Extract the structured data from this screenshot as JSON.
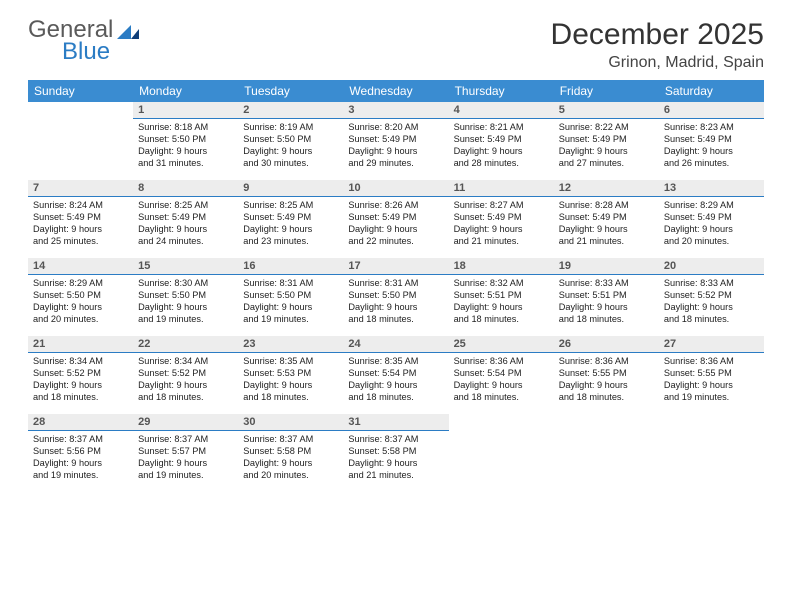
{
  "brand": {
    "part1": "General",
    "part2": "Blue"
  },
  "title": "December 2025",
  "subtitle": "Grinon, Madrid, Spain",
  "colors": {
    "header_bg": "#3a8cd1",
    "header_text": "#ffffff",
    "daynum_bg": "#ededed",
    "day_border": "#2b7cc4",
    "text": "#222222",
    "logo_gray": "#5a5a5a",
    "logo_blue": "#2b7cc4"
  },
  "fonts": {
    "title_pt": 30,
    "subtitle_pt": 16,
    "th_pt": 12,
    "dnum_pt": 11,
    "body_pt": 9.2
  },
  "weekdays": [
    "Sunday",
    "Monday",
    "Tuesday",
    "Wednesday",
    "Thursday",
    "Friday",
    "Saturday"
  ],
  "weeks": [
    [
      null,
      {
        "n": "1",
        "sr": "Sunrise: 8:18 AM",
        "ss": "Sunset: 5:50 PM",
        "d1": "Daylight: 9 hours",
        "d2": "and 31 minutes."
      },
      {
        "n": "2",
        "sr": "Sunrise: 8:19 AM",
        "ss": "Sunset: 5:50 PM",
        "d1": "Daylight: 9 hours",
        "d2": "and 30 minutes."
      },
      {
        "n": "3",
        "sr": "Sunrise: 8:20 AM",
        "ss": "Sunset: 5:49 PM",
        "d1": "Daylight: 9 hours",
        "d2": "and 29 minutes."
      },
      {
        "n": "4",
        "sr": "Sunrise: 8:21 AM",
        "ss": "Sunset: 5:49 PM",
        "d1": "Daylight: 9 hours",
        "d2": "and 28 minutes."
      },
      {
        "n": "5",
        "sr": "Sunrise: 8:22 AM",
        "ss": "Sunset: 5:49 PM",
        "d1": "Daylight: 9 hours",
        "d2": "and 27 minutes."
      },
      {
        "n": "6",
        "sr": "Sunrise: 8:23 AM",
        "ss": "Sunset: 5:49 PM",
        "d1": "Daylight: 9 hours",
        "d2": "and 26 minutes."
      }
    ],
    [
      {
        "n": "7",
        "sr": "Sunrise: 8:24 AM",
        "ss": "Sunset: 5:49 PM",
        "d1": "Daylight: 9 hours",
        "d2": "and 25 minutes."
      },
      {
        "n": "8",
        "sr": "Sunrise: 8:25 AM",
        "ss": "Sunset: 5:49 PM",
        "d1": "Daylight: 9 hours",
        "d2": "and 24 minutes."
      },
      {
        "n": "9",
        "sr": "Sunrise: 8:25 AM",
        "ss": "Sunset: 5:49 PM",
        "d1": "Daylight: 9 hours",
        "d2": "and 23 minutes."
      },
      {
        "n": "10",
        "sr": "Sunrise: 8:26 AM",
        "ss": "Sunset: 5:49 PM",
        "d1": "Daylight: 9 hours",
        "d2": "and 22 minutes."
      },
      {
        "n": "11",
        "sr": "Sunrise: 8:27 AM",
        "ss": "Sunset: 5:49 PM",
        "d1": "Daylight: 9 hours",
        "d2": "and 21 minutes."
      },
      {
        "n": "12",
        "sr": "Sunrise: 8:28 AM",
        "ss": "Sunset: 5:49 PM",
        "d1": "Daylight: 9 hours",
        "d2": "and 21 minutes."
      },
      {
        "n": "13",
        "sr": "Sunrise: 8:29 AM",
        "ss": "Sunset: 5:49 PM",
        "d1": "Daylight: 9 hours",
        "d2": "and 20 minutes."
      }
    ],
    [
      {
        "n": "14",
        "sr": "Sunrise: 8:29 AM",
        "ss": "Sunset: 5:50 PM",
        "d1": "Daylight: 9 hours",
        "d2": "and 20 minutes."
      },
      {
        "n": "15",
        "sr": "Sunrise: 8:30 AM",
        "ss": "Sunset: 5:50 PM",
        "d1": "Daylight: 9 hours",
        "d2": "and 19 minutes."
      },
      {
        "n": "16",
        "sr": "Sunrise: 8:31 AM",
        "ss": "Sunset: 5:50 PM",
        "d1": "Daylight: 9 hours",
        "d2": "and 19 minutes."
      },
      {
        "n": "17",
        "sr": "Sunrise: 8:31 AM",
        "ss": "Sunset: 5:50 PM",
        "d1": "Daylight: 9 hours",
        "d2": "and 18 minutes."
      },
      {
        "n": "18",
        "sr": "Sunrise: 8:32 AM",
        "ss": "Sunset: 5:51 PM",
        "d1": "Daylight: 9 hours",
        "d2": "and 18 minutes."
      },
      {
        "n": "19",
        "sr": "Sunrise: 8:33 AM",
        "ss": "Sunset: 5:51 PM",
        "d1": "Daylight: 9 hours",
        "d2": "and 18 minutes."
      },
      {
        "n": "20",
        "sr": "Sunrise: 8:33 AM",
        "ss": "Sunset: 5:52 PM",
        "d1": "Daylight: 9 hours",
        "d2": "and 18 minutes."
      }
    ],
    [
      {
        "n": "21",
        "sr": "Sunrise: 8:34 AM",
        "ss": "Sunset: 5:52 PM",
        "d1": "Daylight: 9 hours",
        "d2": "and 18 minutes."
      },
      {
        "n": "22",
        "sr": "Sunrise: 8:34 AM",
        "ss": "Sunset: 5:52 PM",
        "d1": "Daylight: 9 hours",
        "d2": "and 18 minutes."
      },
      {
        "n": "23",
        "sr": "Sunrise: 8:35 AM",
        "ss": "Sunset: 5:53 PM",
        "d1": "Daylight: 9 hours",
        "d2": "and 18 minutes."
      },
      {
        "n": "24",
        "sr": "Sunrise: 8:35 AM",
        "ss": "Sunset: 5:54 PM",
        "d1": "Daylight: 9 hours",
        "d2": "and 18 minutes."
      },
      {
        "n": "25",
        "sr": "Sunrise: 8:36 AM",
        "ss": "Sunset: 5:54 PM",
        "d1": "Daylight: 9 hours",
        "d2": "and 18 minutes."
      },
      {
        "n": "26",
        "sr": "Sunrise: 8:36 AM",
        "ss": "Sunset: 5:55 PM",
        "d1": "Daylight: 9 hours",
        "d2": "and 18 minutes."
      },
      {
        "n": "27",
        "sr": "Sunrise: 8:36 AM",
        "ss": "Sunset: 5:55 PM",
        "d1": "Daylight: 9 hours",
        "d2": "and 19 minutes."
      }
    ],
    [
      {
        "n": "28",
        "sr": "Sunrise: 8:37 AM",
        "ss": "Sunset: 5:56 PM",
        "d1": "Daylight: 9 hours",
        "d2": "and 19 minutes."
      },
      {
        "n": "29",
        "sr": "Sunrise: 8:37 AM",
        "ss": "Sunset: 5:57 PM",
        "d1": "Daylight: 9 hours",
        "d2": "and 19 minutes."
      },
      {
        "n": "30",
        "sr": "Sunrise: 8:37 AM",
        "ss": "Sunset: 5:58 PM",
        "d1": "Daylight: 9 hours",
        "d2": "and 20 minutes."
      },
      {
        "n": "31",
        "sr": "Sunrise: 8:37 AM",
        "ss": "Sunset: 5:58 PM",
        "d1": "Daylight: 9 hours",
        "d2": "and 21 minutes."
      },
      null,
      null,
      null
    ]
  ]
}
